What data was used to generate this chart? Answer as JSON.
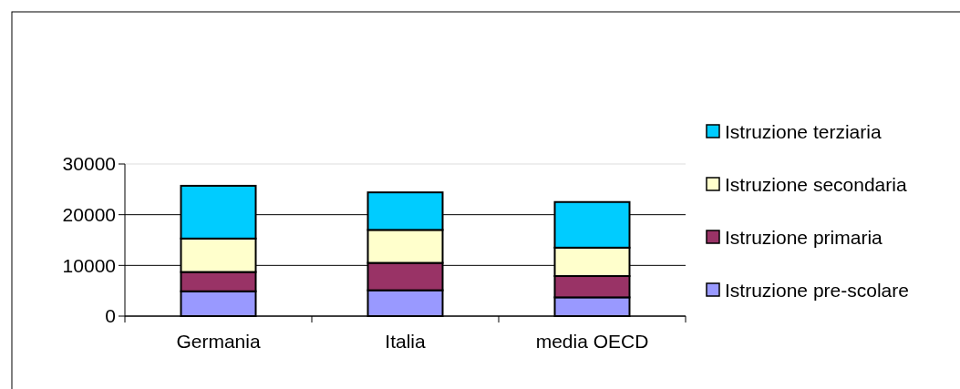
{
  "chart_data": {
    "type": "bar",
    "stacked": true,
    "categories": [
      "Germania",
      "Italia",
      "media OECD"
    ],
    "series": [
      {
        "name": "Istruzione pre-scolare",
        "color": "#9999ff",
        "values": [
          4900,
          5100,
          3700
        ]
      },
      {
        "name": "Istruzione primaria",
        "color": "#993366",
        "values": [
          3800,
          5400,
          4200
        ]
      },
      {
        "name": "Istruzione secondaria",
        "color": "#ffffcc",
        "values": [
          6600,
          6500,
          5600
        ]
      },
      {
        "name": "Istruzione terziaria",
        "color": "#00ccff",
        "values": [
          10400,
          7400,
          9000
        ]
      }
    ],
    "ylim": [
      0,
      30000
    ],
    "yticks": [
      0,
      10000,
      20000,
      30000
    ],
    "grid": "y",
    "legend": "right"
  }
}
